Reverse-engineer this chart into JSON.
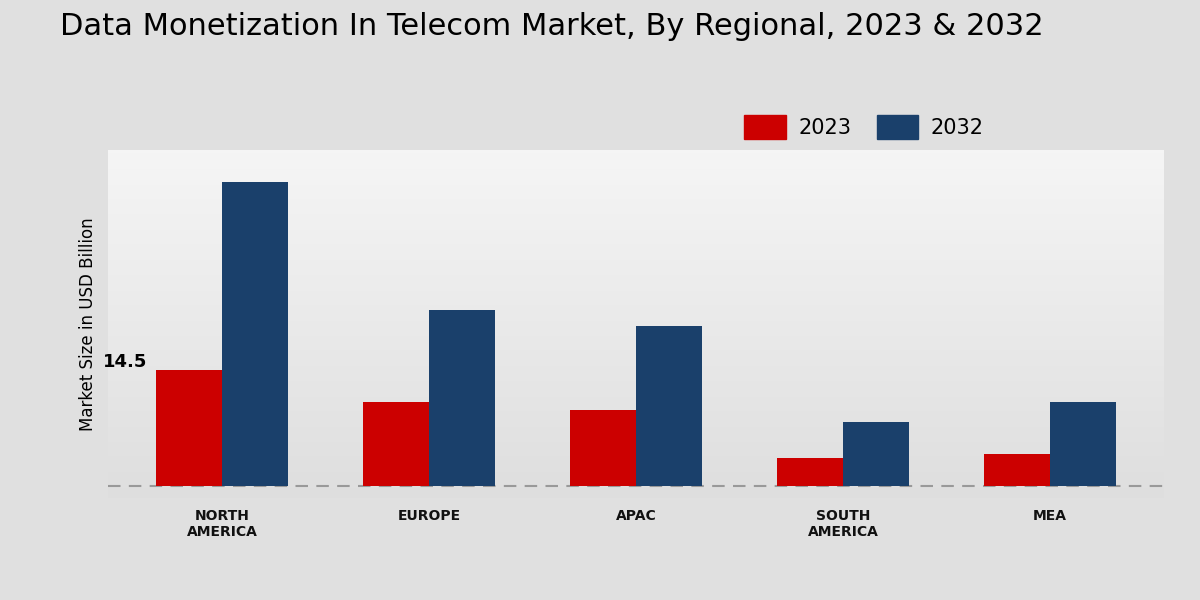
{
  "title": "Data Monetization In Telecom Market, By Regional, 2023 & 2032",
  "ylabel": "Market Size in USD Billion",
  "categories": [
    "NORTH\nAMERICA",
    "EUROPE",
    "APAC",
    "SOUTH\nAMERICA",
    "MEA"
  ],
  "values_2023": [
    14.5,
    10.5,
    9.5,
    3.5,
    4.0
  ],
  "values_2032": [
    38.0,
    22.0,
    20.0,
    8.0,
    10.5
  ],
  "color_2023": "#cc0000",
  "color_2032": "#1a406b",
  "bar_width": 0.32,
  "annotation_text": "14.5",
  "legend_labels": [
    "2023",
    "2032"
  ],
  "title_fontsize": 22,
  "label_fontsize": 12,
  "tick_fontsize": 10,
  "ylim": [
    -1.5,
    42
  ],
  "bottom_bar_color": "#cc0000"
}
